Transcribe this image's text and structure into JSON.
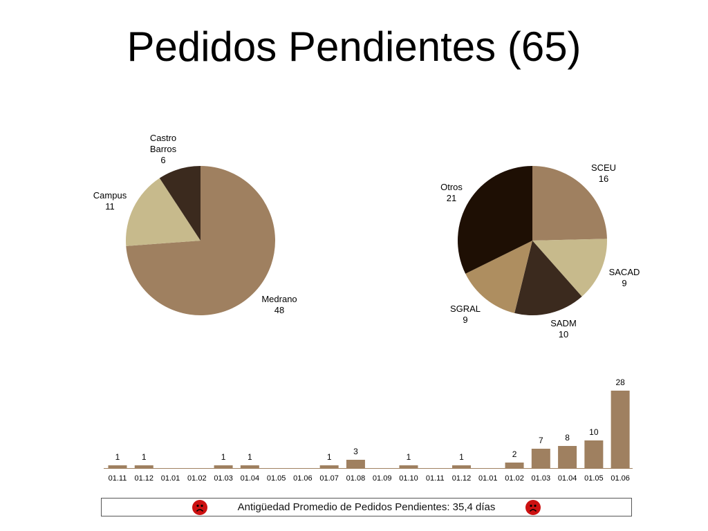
{
  "title": "Pedidos Pendientes (65)",
  "colors": {
    "light_brown": "#9f8060",
    "khaki": "#c7ba8c",
    "dark_brown": "#3b2a1e",
    "near_black": "#1e0f04",
    "tan": "#ae8e60",
    "bar": "#9f8060",
    "sad_face": "#cc1111"
  },
  "chart_data": [
    {
      "type": "pie",
      "slices": [
        {
          "label": "Medrano",
          "value": 48,
          "color": "#9f8060"
        },
        {
          "label": "Campus",
          "value": 11,
          "color": "#c7ba8c"
        },
        {
          "label": "Castro Barros",
          "value": 6,
          "color": "#3b2a1e"
        }
      ]
    },
    {
      "type": "pie",
      "slices": [
        {
          "label": "SCEU",
          "value": 16,
          "color": "#9f8060"
        },
        {
          "label": "SACAD",
          "value": 9,
          "color": "#c7ba8c"
        },
        {
          "label": "SADM",
          "value": 10,
          "color": "#3b2a1e"
        },
        {
          "label": "SGRAL",
          "value": 9,
          "color": "#ae8e60"
        },
        {
          "label": "Otros",
          "value": 21,
          "color": "#1e0f04"
        }
      ]
    },
    {
      "type": "bar",
      "categories": [
        "01.11",
        "01.12",
        "01.01",
        "01.02",
        "01.03",
        "01.04",
        "01.05",
        "01.06",
        "01.07",
        "01.08",
        "01.09",
        "01.10",
        "01.11",
        "01.12",
        "01.01",
        "01.02",
        "01.03",
        "01.04",
        "01.05",
        "01.06"
      ],
      "values": [
        1,
        1,
        0,
        0,
        1,
        1,
        0,
        0,
        1,
        3,
        0,
        1,
        0,
        1,
        0,
        2,
        7,
        8,
        10,
        28
      ],
      "ylim": [
        0,
        28
      ]
    }
  ],
  "footer": {
    "text": "Antigüedad Promedio de Pedidos Pendientes: 35,4 días",
    "icons": [
      "sad-face-icon",
      "sad-face-icon"
    ]
  }
}
